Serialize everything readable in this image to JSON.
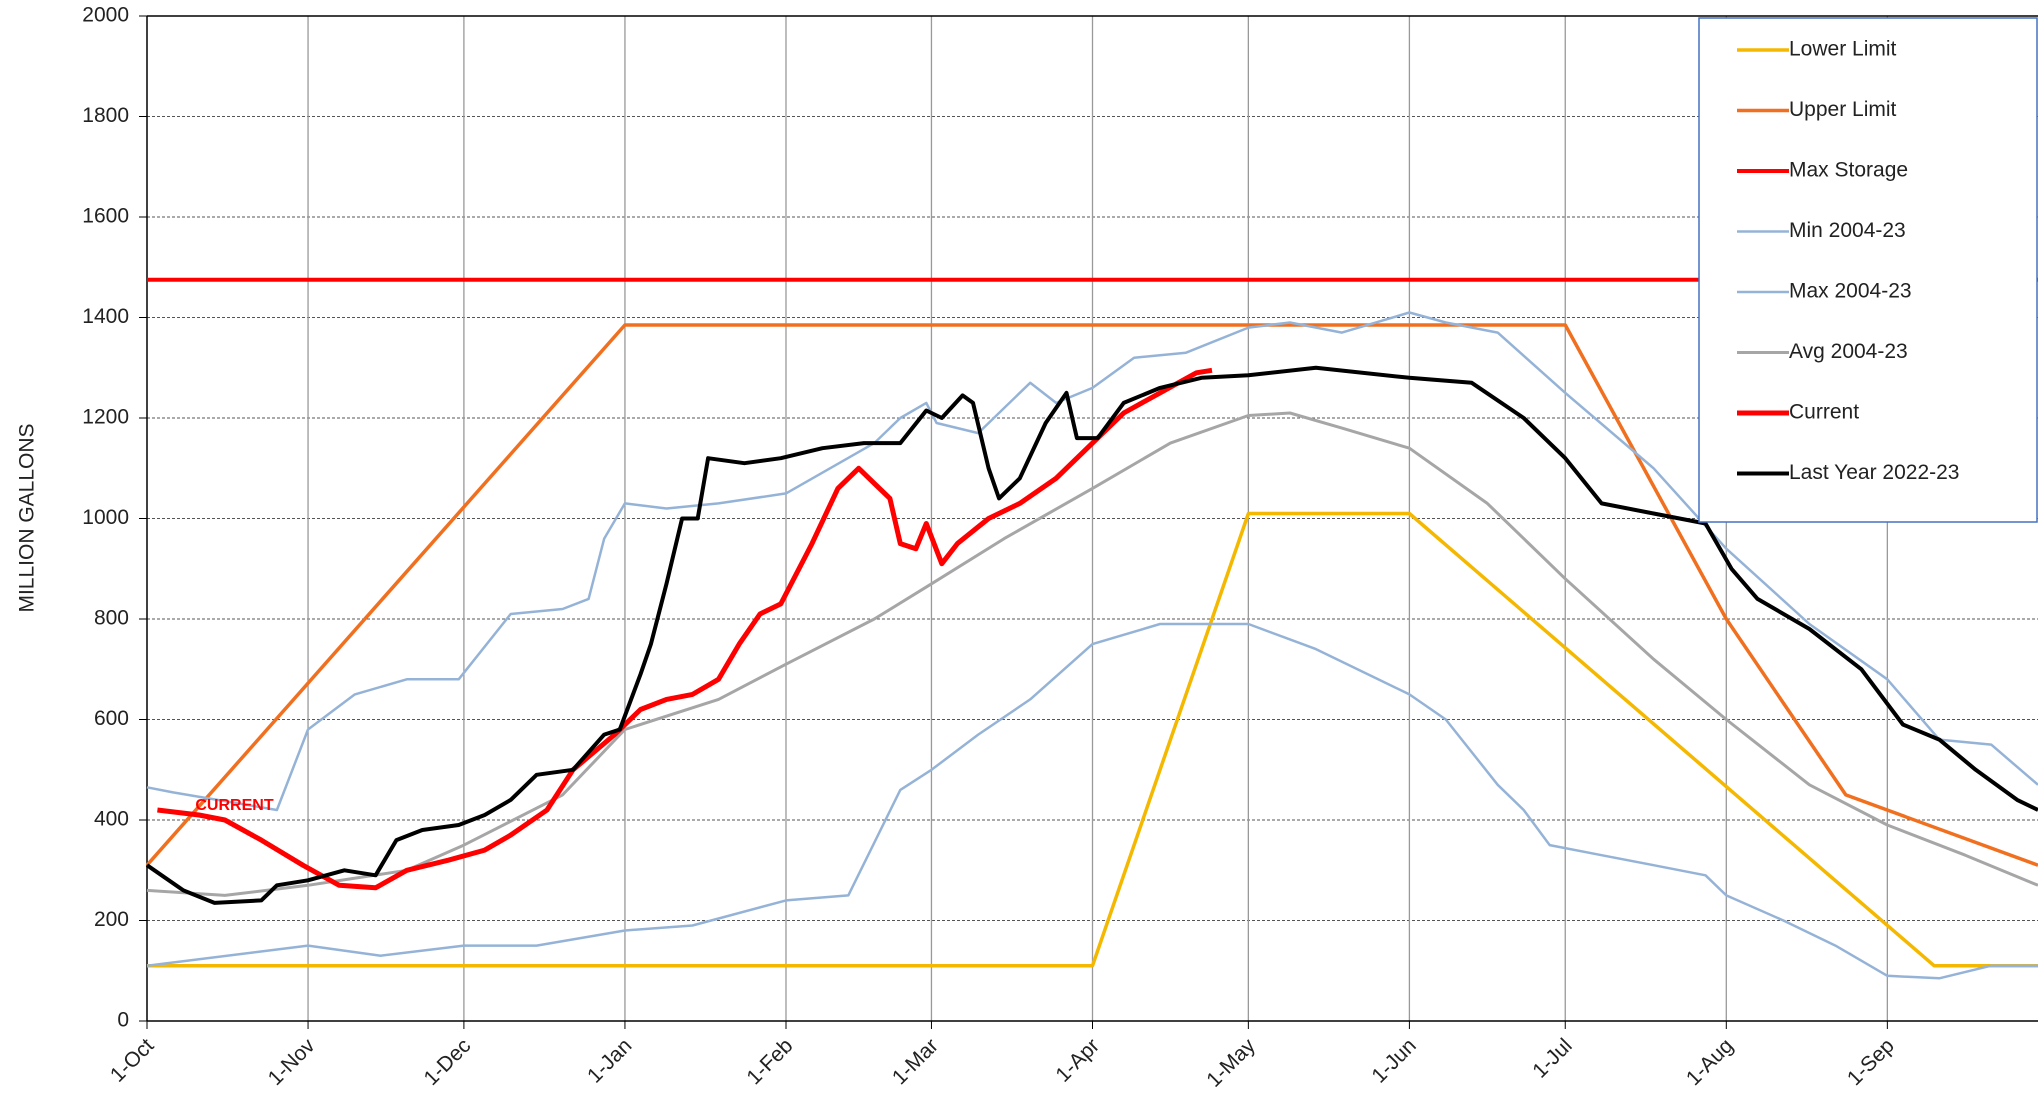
{
  "chart_data": {
    "type": "line",
    "y_label": "MILLION GALLONS",
    "annotations": [
      "CURRENT"
    ],
    "xlim": [
      0,
      364
    ],
    "xticks": [
      {
        "value": 0,
        "label": "1-Oct"
      },
      {
        "value": 31,
        "label": "1-Nov"
      },
      {
        "value": 61,
        "label": "1-Dec"
      },
      {
        "value": 92,
        "label": "1-Jan"
      },
      {
        "value": 123,
        "label": "1-Feb"
      },
      {
        "value": 151,
        "label": "1-Mar"
      },
      {
        "value": 182,
        "label": "1-Apr"
      },
      {
        "value": 212,
        "label": "1-May"
      },
      {
        "value": 243,
        "label": "1-Jun"
      },
      {
        "value": 273,
        "label": "1-Jul"
      },
      {
        "value": 304,
        "label": "1-Aug"
      },
      {
        "value": 335,
        "label": "1-Sep"
      }
    ],
    "ylim": [
      0,
      2000
    ],
    "yticks": [
      0,
      200,
      400,
      600,
      800,
      1000,
      1200,
      1400,
      1600,
      1800,
      2000
    ],
    "grid": true,
    "legend": "upper right",
    "series": [
      {
        "name": "Lower Limit",
        "color": "#f5b800",
        "width": 3.5,
        "x": [
          0,
          182,
          212,
          243,
          344,
          364
        ],
        "values": [
          110,
          110,
          1010,
          1010,
          110,
          110
        ]
      },
      {
        "name": "Upper Limit",
        "color": "#f07020",
        "width": 3.5,
        "x": [
          0,
          92,
          273,
          304,
          327,
          364
        ],
        "values": [
          310,
          1385,
          1385,
          800,
          450,
          310
        ]
      },
      {
        "name": "Max Storage",
        "color": "#ff0000",
        "width": 4,
        "x": [
          0,
          364
        ],
        "values": [
          1475,
          1475
        ]
      },
      {
        "name": "Min 2004-23",
        "color": "#95b3d7",
        "width": 2.5,
        "x": [
          0,
          31,
          45,
          61,
          75,
          92,
          105,
          123,
          135,
          145,
          151,
          160,
          170,
          182,
          195,
          212,
          225,
          243,
          250,
          260,
          265,
          270,
          280,
          290,
          300,
          304,
          315,
          325,
          335,
          345,
          355,
          364
        ],
        "values": [
          110,
          150,
          130,
          150,
          150,
          180,
          190,
          240,
          250,
          460,
          500,
          570,
          640,
          750,
          790,
          790,
          740,
          650,
          600,
          470,
          420,
          350,
          330,
          310,
          290,
          250,
          200,
          150,
          90,
          85,
          110,
          110
        ]
      },
      {
        "name": "Max 2004-23",
        "color": "#95b3d7",
        "width": 2.5,
        "x": [
          0,
          5,
          25,
          31,
          40,
          50,
          60,
          70,
          80,
          85,
          88,
          92,
          100,
          110,
          123,
          140,
          145,
          150,
          152,
          160,
          170,
          175,
          182,
          190,
          200,
          212,
          220,
          230,
          243,
          250,
          260,
          273,
          290,
          304,
          320,
          335,
          345,
          355,
          364
        ],
        "values": [
          465,
          455,
          420,
          580,
          650,
          680,
          680,
          810,
          820,
          840,
          960,
          1030,
          1020,
          1030,
          1050,
          1150,
          1200,
          1230,
          1190,
          1170,
          1270,
          1230,
          1260,
          1320,
          1330,
          1380,
          1390,
          1370,
          1410,
          1390,
          1370,
          1250,
          1100,
          940,
          790,
          680,
          560,
          550,
          470
        ]
      },
      {
        "name": "Avg 2004-23",
        "color": "#a6a6a6",
        "width": 3,
        "x": [
          0,
          15,
          31,
          50,
          61,
          80,
          92,
          110,
          123,
          140,
          151,
          165,
          182,
          197,
          212,
          220,
          230,
          243,
          258,
          273,
          290,
          304,
          320,
          335,
          350,
          364
        ],
        "values": [
          260,
          250,
          270,
          300,
          350,
          450,
          580,
          640,
          710,
          800,
          870,
          960,
          1060,
          1150,
          1205,
          1210,
          1180,
          1140,
          1030,
          880,
          720,
          600,
          470,
          390,
          330,
          270
        ]
      },
      {
        "name": "Current",
        "color": "#ff0000",
        "width": 5,
        "x": [
          2,
          10,
          15,
          22,
          30,
          37,
          44,
          50,
          58,
          65,
          70,
          77,
          82,
          90,
          95,
          100,
          105,
          110,
          114,
          118,
          122,
          128,
          133,
          137,
          141,
          143,
          145,
          148,
          150,
          153,
          156,
          162,
          168,
          175,
          182,
          188,
          195,
          202,
          205
        ],
        "values": [
          420,
          410,
          400,
          360,
          310,
          270,
          265,
          300,
          320,
          340,
          370,
          420,
          500,
          570,
          620,
          640,
          650,
          680,
          750,
          810,
          830,
          950,
          1060,
          1100,
          1060,
          1040,
          950,
          940,
          990,
          910,
          950,
          1000,
          1030,
          1080,
          1150,
          1210,
          1250,
          1290,
          1295
        ]
      },
      {
        "name": "Last Year 2022-23",
        "color": "#000000",
        "width": 4,
        "x": [
          0,
          7,
          13,
          22,
          25,
          31,
          38,
          44,
          48,
          53,
          60,
          65,
          70,
          75,
          82,
          88,
          91,
          95,
          97,
          100,
          103,
          106,
          108,
          115,
          122,
          130,
          138,
          145,
          150,
          153,
          157,
          159,
          162,
          164,
          168,
          173,
          177,
          179,
          183,
          188,
          195,
          203,
          212,
          225,
          243,
          255,
          265,
          273,
          280,
          290,
          300,
          305,
          310,
          320,
          330,
          338,
          345,
          352,
          360,
          364
        ],
        "values": [
          310,
          260,
          235,
          240,
          270,
          280,
          300,
          290,
          360,
          380,
          390,
          410,
          440,
          490,
          500,
          570,
          580,
          690,
          750,
          870,
          1000,
          1000,
          1120,
          1110,
          1120,
          1140,
          1150,
          1150,
          1215,
          1200,
          1245,
          1230,
          1100,
          1040,
          1080,
          1190,
          1250,
          1160,
          1160,
          1230,
          1260,
          1280,
          1285,
          1300,
          1280,
          1270,
          1200,
          1120,
          1030,
          1010,
          990,
          900,
          840,
          780,
          700,
          590,
          560,
          500,
          440,
          420
        ]
      }
    ]
  }
}
